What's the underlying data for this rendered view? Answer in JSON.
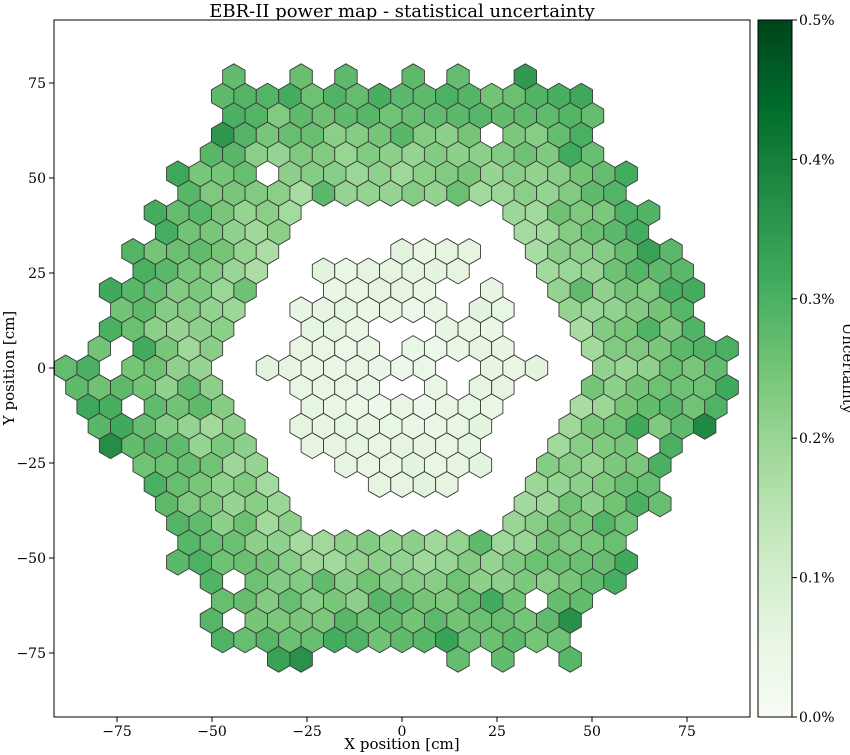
{
  "chart_data": {
    "type": "heatmap",
    "title": "EBR-II power map - statistical uncertainty",
    "xlabel": "X position [cm]",
    "ylabel": "Y position [cm]",
    "xlim": [
      -92,
      92
    ],
    "ylim": [
      -92,
      92
    ],
    "xticks": [
      -75,
      -50,
      -25,
      0,
      25,
      50,
      75
    ],
    "yticks": [
      -75,
      -50,
      -25,
      0,
      25,
      50,
      75
    ],
    "xtick_labels": [
      "−75",
      "−50",
      "−25",
      "0",
      "25",
      "50",
      "75"
    ],
    "ytick_labels": [
      "−75",
      "−50",
      "−25",
      "0",
      "25",
      "50",
      "75"
    ],
    "grid": false,
    "colormap": "Greens",
    "colorbar": {
      "label": "Uncertainty",
      "range": [
        0,
        0.5
      ],
      "ticks": [
        0,
        0.1,
        0.2,
        0.3,
        0.4,
        0.5
      ],
      "tick_labels": [
        "0.0%",
        "0.1%",
        "0.2%",
        "0.3%",
        "0.4%",
        "0.5%"
      ]
    },
    "assemblies": {
      "lattice": "hexagonal, pitch ≈ 5.9 cm (flat-to-flat)",
      "inner_region": {
        "rings": "0–6",
        "uncertainty_range": [
          0.03,
          0.09
        ]
      },
      "outer_region": {
        "rings": "9–15",
        "uncertainty_range": [
          0.17,
          0.34
        ]
      },
      "empty_positions": [
        [
          -5.9,
          10.2
        ],
        [
          0,
          10.2
        ],
        [
          5.9,
          10.2
        ],
        [
          11.8,
          20.4
        ],
        [
          14.7,
          15.3
        ],
        [
          17.7,
          20.4
        ],
        [
          -2.9,
          5.1
        ],
        [
          -2.9,
          -5.1
        ],
        [
          11.8,
          0
        ],
        [
          17.7,
          0
        ],
        [
          2.9,
          -5.1
        ],
        [
          14.7,
          -5.1
        ],
        [
          -14.7,
          -10.2
        ],
        [
          20.6,
          -20.4
        ],
        [
          -35.4,
          51.1
        ],
        [
          23.6,
          61.3
        ],
        [
          -76.7,
          0
        ],
        [
          -73.7,
          5.1
        ],
        [
          -70.8,
          -10.2
        ],
        [
          64.9,
          -20.4
        ],
        [
          67.8,
          10.2
        ],
        [
          61.9,
          30.6
        ],
        [
          -44.3,
          -56.2
        ],
        [
          -44.3,
          -66.4
        ],
        [
          20.6,
          -61.3
        ],
        [
          47.2,
          -56.2
        ],
        [
          35.4,
          -61.3
        ],
        [
          -38.3,
          -71.5
        ],
        [
          -17.7,
          -76.6
        ],
        [
          -11.8,
          -76.6
        ],
        [
          29.5,
          -76.6
        ],
        [
          32.4,
          -71.5
        ]
      ]
    }
  }
}
